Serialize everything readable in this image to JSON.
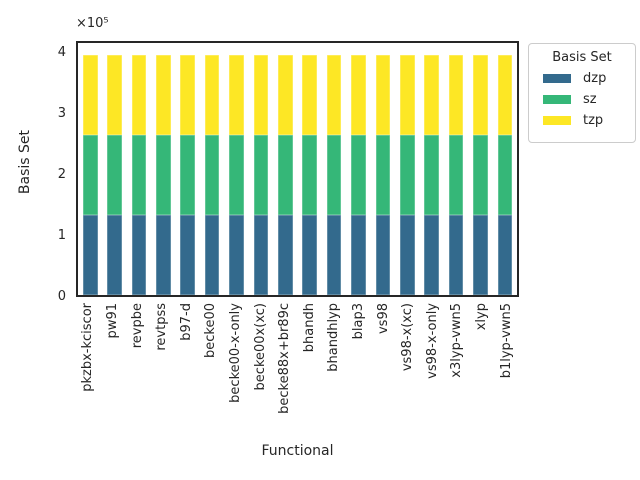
{
  "colors": {
    "spine": "#262626",
    "text": "#262626",
    "legend_border": "#cccccc",
    "dzp": "#336a8d",
    "sz": "#35b778",
    "tzp": "#fde725"
  },
  "chart_data": {
    "type": "bar",
    "stacked": true,
    "orientation": "vertical",
    "title": "",
    "xlabel": "Functional",
    "ylabel": "Basis Set",
    "y_offset_text": "×10⁵",
    "grid": false,
    "categories": [
      "pkzbx-kciscor",
      "pw91",
      "revpbe",
      "revtpss",
      "b97-d",
      "becke00",
      "becke00-x-only",
      "becke00x(xc)",
      "becke88x+br89c",
      "bhandh",
      "bhandhlyp",
      "blap3",
      "vs98",
      "vs98-x(xc)",
      "vs98-x-only",
      "x3lyp-vwn5",
      "xlyp",
      "b1lyp-vwn5"
    ],
    "series": [
      {
        "name": "dzp",
        "color": "#336a8d",
        "values": [
          133333,
          133333,
          133333,
          133333,
          133333,
          133333,
          133333,
          133333,
          133333,
          133333,
          133333,
          133333,
          133333,
          133333,
          133333,
          133333,
          133333,
          133333
        ]
      },
      {
        "name": "sz",
        "color": "#35b778",
        "values": [
          133333,
          133333,
          133333,
          133333,
          133333,
          133333,
          133333,
          133333,
          133333,
          133333,
          133333,
          133333,
          133333,
          133333,
          133333,
          133333,
          133333,
          133333
        ]
      },
      {
        "name": "tzp",
        "color": "#fde725",
        "values": [
          133334,
          133334,
          133334,
          133334,
          133334,
          133334,
          133334,
          133334,
          133334,
          133334,
          133334,
          133334,
          133334,
          133334,
          133334,
          133334,
          133334,
          133334
        ]
      }
    ],
    "bar_total": 400000,
    "ylim": [
      0,
      420000
    ],
    "yticks": [
      {
        "value": 0,
        "label": "0"
      },
      {
        "value": 100000,
        "label": "1"
      },
      {
        "value": 200000,
        "label": "2"
      },
      {
        "value": 300000,
        "label": "3"
      },
      {
        "value": 400000,
        "label": "4"
      }
    ],
    "legend": {
      "title": "Basis Set",
      "position": "upper-right-outside",
      "entries": [
        "dzp",
        "sz",
        "tzp"
      ]
    }
  }
}
